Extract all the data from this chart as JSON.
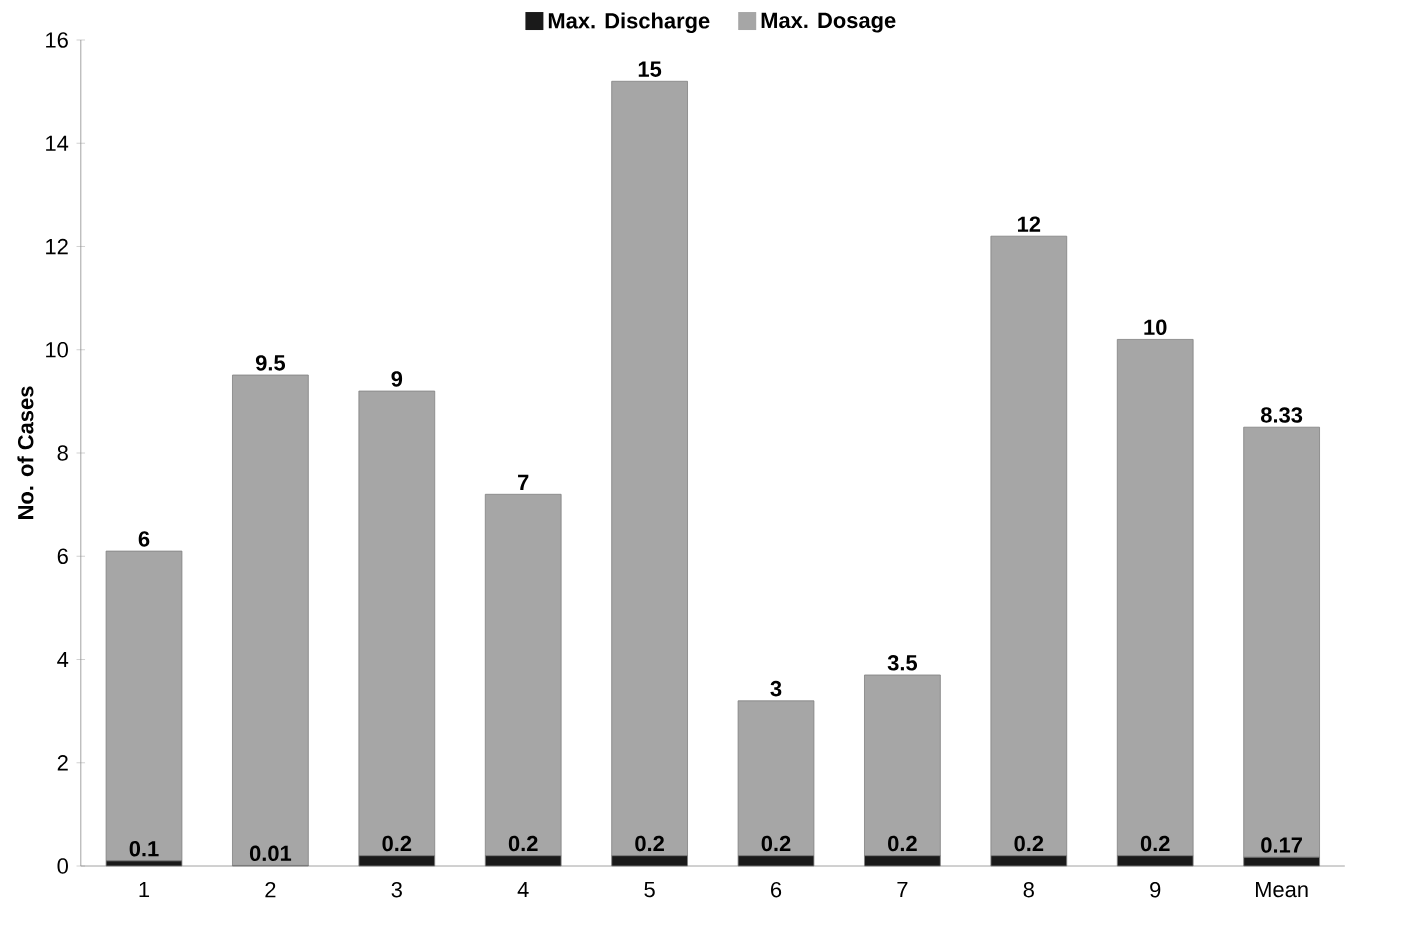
{
  "chart_data": {
    "type": "bar",
    "stacked": true,
    "ylabel": "No. of Cases",
    "categories": [
      "1",
      "2",
      "3",
      "4",
      "5",
      "6",
      "7",
      "8",
      "9",
      "Mean"
    ],
    "series": [
      {
        "name": "Max. Discharge",
        "color": "#1a1a1a",
        "values": [
          0.1,
          0.01,
          0.2,
          0.2,
          0.2,
          0.2,
          0.2,
          0.2,
          0.2,
          0.17
        ]
      },
      {
        "name": "Max. Dosage",
        "color": "#a6a6a6",
        "values": [
          6,
          9.5,
          9,
          7,
          15,
          3,
          3.5,
          12,
          10,
          8.33
        ]
      }
    ],
    "ylim": [
      0,
      16
    ],
    "yticks": [
      0,
      2,
      4,
      6,
      8,
      10,
      12,
      14,
      16
    ],
    "data_labels": true,
    "legend": "top",
    "grid": false
  }
}
